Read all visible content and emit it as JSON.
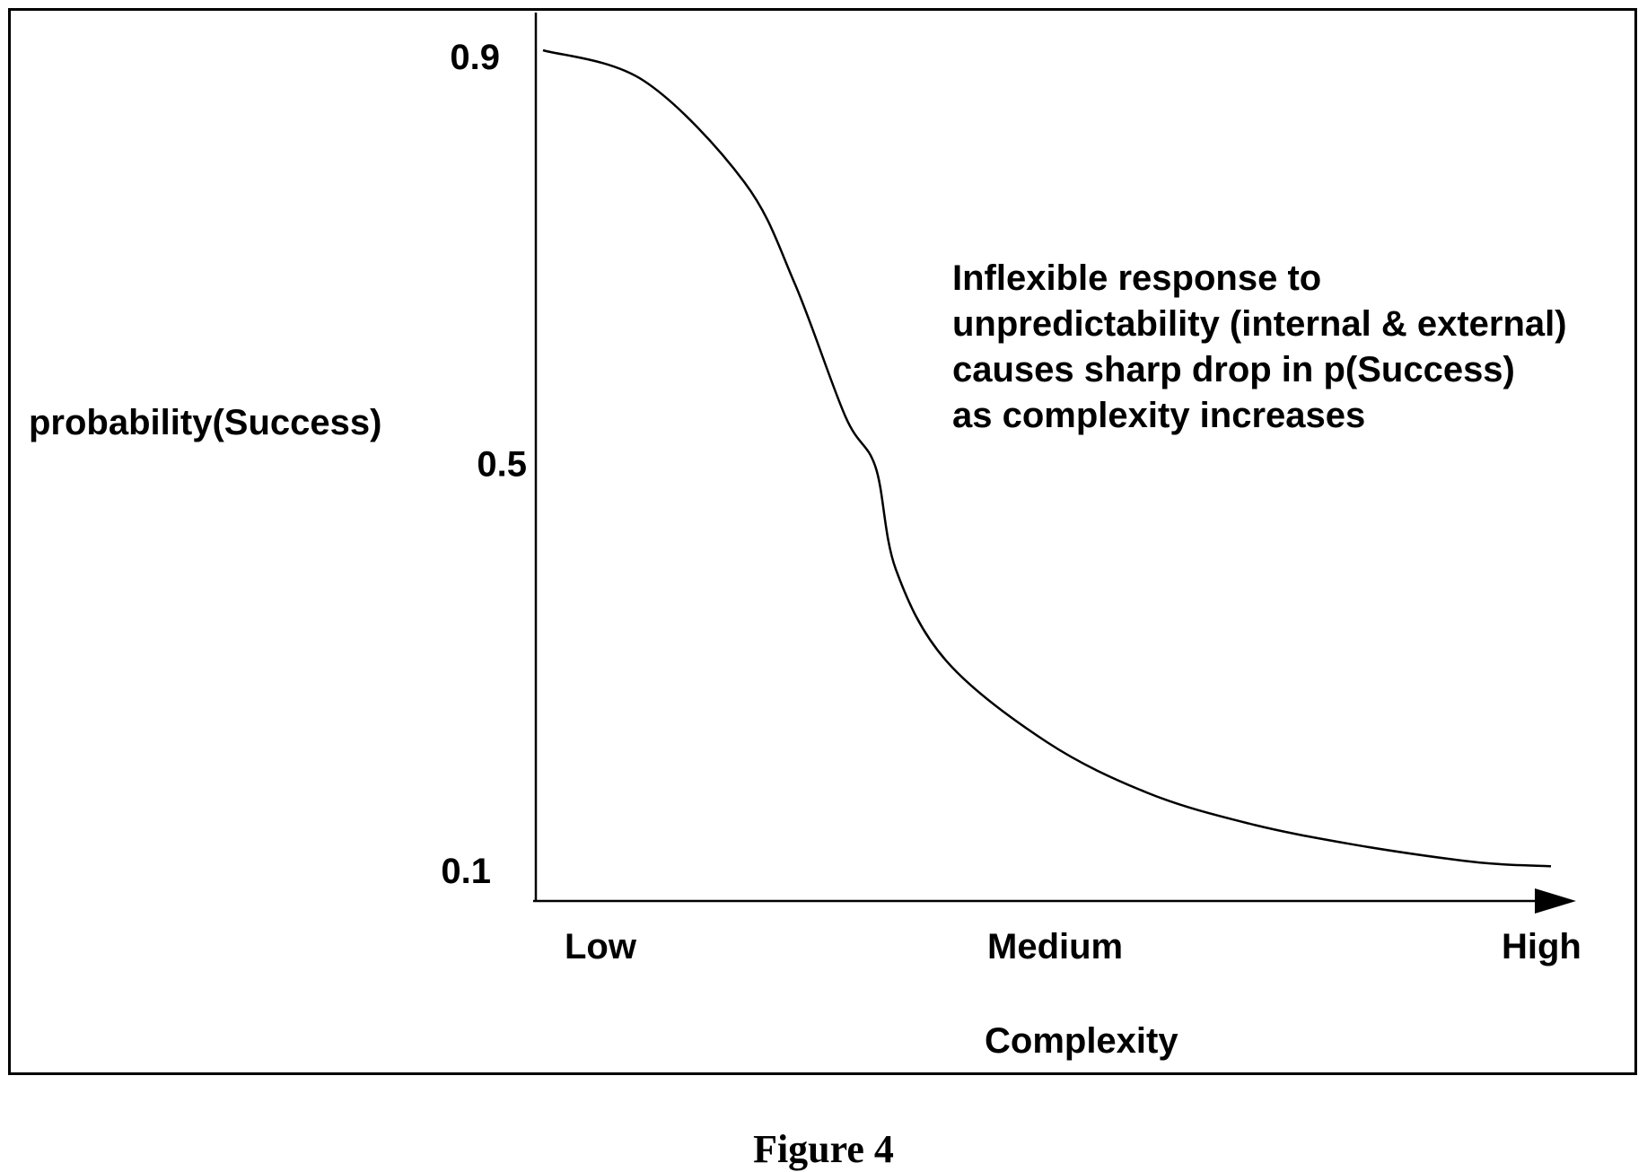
{
  "chart_data": {
    "type": "line",
    "title": "",
    "ylabel": "probability(Success)",
    "xlabel": "Complexity",
    "x_categories": [
      "Low",
      "Medium",
      "High"
    ],
    "y_ticks": [
      "0.9",
      "0.5",
      "0.1"
    ],
    "ylim": [
      0.1,
      0.9
    ],
    "xlim": [
      0,
      1
    ],
    "series": [
      {
        "x": [
          0.0,
          0.1,
          0.2,
          0.25,
          0.3,
          0.33,
          0.35,
          0.4,
          0.5,
          0.6,
          0.7,
          0.8,
          0.9,
          0.95,
          1.0
        ],
        "values": [
          0.9,
          0.87,
          0.77,
          0.67,
          0.54,
          0.49,
          0.39,
          0.3,
          0.22,
          0.17,
          0.14,
          0.12,
          0.105,
          0.1,
          0.098
        ]
      }
    ],
    "annotation": [
      "Inflexible response to",
      "unpredictability (internal & external)",
      "causes sharp drop in p(Success)",
      "as complexity increases"
    ],
    "grid": false,
    "legend": "none"
  },
  "caption": "Figure 4"
}
